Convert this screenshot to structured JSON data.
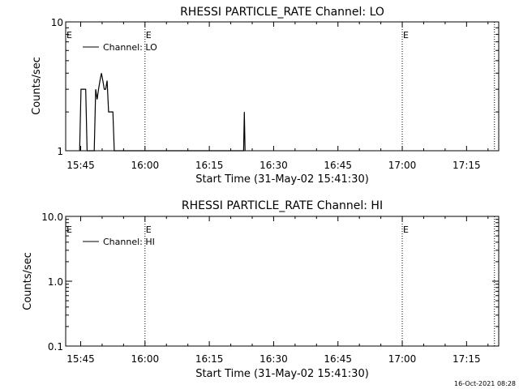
{
  "footer": {
    "timestamp": "16-Oct-2021 08:28"
  },
  "colors": {
    "background": "#ffffff",
    "foreground": "#000000"
  },
  "chart_data": [
    {
      "type": "line",
      "title": "RHESSI PARTICLE_RATE Channel: LO",
      "xlabel": "Start Time (31-May-02 15:41:30)",
      "ylabel": "Counts/sec",
      "y_scale": "log",
      "ylim": [
        1,
        10
      ],
      "y_ticks": [
        {
          "value": 1,
          "label": "1"
        },
        {
          "value": 10,
          "label": "10"
        }
      ],
      "xlim": [
        "15:41:30",
        "17:22:30"
      ],
      "x_ticks": [
        "15:45",
        "16:00",
        "16:15",
        "16:30",
        "16:45",
        "17:00",
        "17:15"
      ],
      "legend": {
        "placement": "top-left",
        "entries": [
          "Channel: LO"
        ]
      },
      "event_lines": [
        {
          "time": "16:00:00",
          "label": "E"
        },
        {
          "time": "17:00:00",
          "label": "E"
        },
        {
          "time": "17:21:30",
          "label": ""
        }
      ],
      "series": [
        {
          "name": "Channel: LO",
          "points": [
            [
              "15:44:45",
              1
            ],
            [
              "15:45:05",
              3
            ],
            [
              "15:46:10",
              3
            ],
            [
              "15:46:30",
              1
            ],
            [
              "15:48:10",
              1
            ],
            [
              "15:48:30",
              3
            ],
            [
              "15:48:50",
              2.5
            ],
            [
              "15:49:10",
              3
            ],
            [
              "15:49:30",
              3.5
            ],
            [
              "15:49:50",
              4
            ],
            [
              "15:50:10",
              3.5
            ],
            [
              "15:50:30",
              3
            ],
            [
              "15:50:50",
              3
            ],
            [
              "15:51:10",
              3.5
            ],
            [
              "15:51:30",
              2
            ],
            [
              "15:52:30",
              2
            ],
            [
              "15:52:50",
              1
            ],
            [
              "16:23:00",
              1
            ],
            [
              "16:23:10",
              2
            ],
            [
              "16:23:20",
              1
            ]
          ]
        }
      ]
    },
    {
      "type": "line",
      "title": "RHESSI PARTICLE_RATE Channel: HI",
      "xlabel": "Start Time (31-May-02 15:41:30)",
      "ylabel": "Counts/sec",
      "y_scale": "log",
      "ylim": [
        0.1,
        10
      ],
      "y_ticks": [
        {
          "value": 0.1,
          "label": "0.1"
        },
        {
          "value": 1,
          "label": "1.0"
        },
        {
          "value": 10,
          "label": "10.0"
        }
      ],
      "xlim": [
        "15:41:30",
        "17:22:30"
      ],
      "x_ticks": [
        "15:45",
        "16:00",
        "16:15",
        "16:30",
        "16:45",
        "17:00",
        "17:15"
      ],
      "legend": {
        "placement": "top-left",
        "entries": [
          "Channel: HI"
        ]
      },
      "event_lines": [
        {
          "time": "16:00:00",
          "label": "E"
        },
        {
          "time": "17:00:00",
          "label": "E"
        },
        {
          "time": "17:21:30",
          "label": ""
        }
      ],
      "series": [
        {
          "name": "Channel: HI",
          "points": []
        }
      ]
    }
  ]
}
